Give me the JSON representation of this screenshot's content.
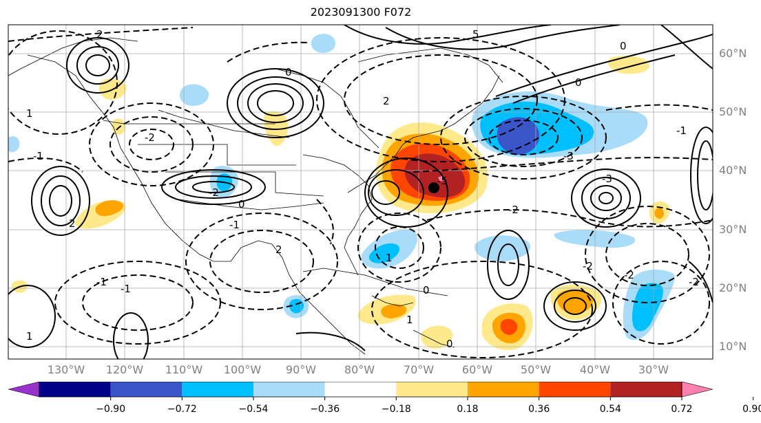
{
  "title": "2023091300 F072",
  "lat_labels": [
    "60°N",
    "50°N",
    "40°N",
    "30°N",
    "20°N",
    "10°N"
  ],
  "lon_labels": [
    "130°W",
    "120°W",
    "110°W",
    "100°W",
    "90°W",
    "80°W",
    "70°W",
    "60°W",
    "50°W",
    "40°W",
    "30°W"
  ],
  "colorbar": {
    "ticks": [
      "−0.90",
      "−0.72",
      "−0.54",
      "−0.36",
      "−0.18",
      "0.18",
      "0.36",
      "0.54",
      "0.72",
      "0.90"
    ],
    "colors": [
      "#9932cc",
      "#00008b",
      "#3a55c8",
      "#00bfff",
      "#a9dcf8",
      "#ffffff",
      "#ffe98a",
      "#ffa500",
      "#ff4500",
      "#b22222",
      "#ff80b0"
    ]
  },
  "contour_labels": [
    "2",
    "5",
    "0",
    "-2",
    "2",
    "1",
    "-1",
    "-2",
    "2",
    "-5",
    "-3",
    "0",
    "0",
    "-3",
    "-1",
    "2",
    "-2",
    "-1",
    "-1",
    "-2",
    "1",
    "0",
    "0",
    "1",
    "-2",
    "-1",
    "0",
    "1",
    "-2"
  ],
  "marker": "storm-center"
}
